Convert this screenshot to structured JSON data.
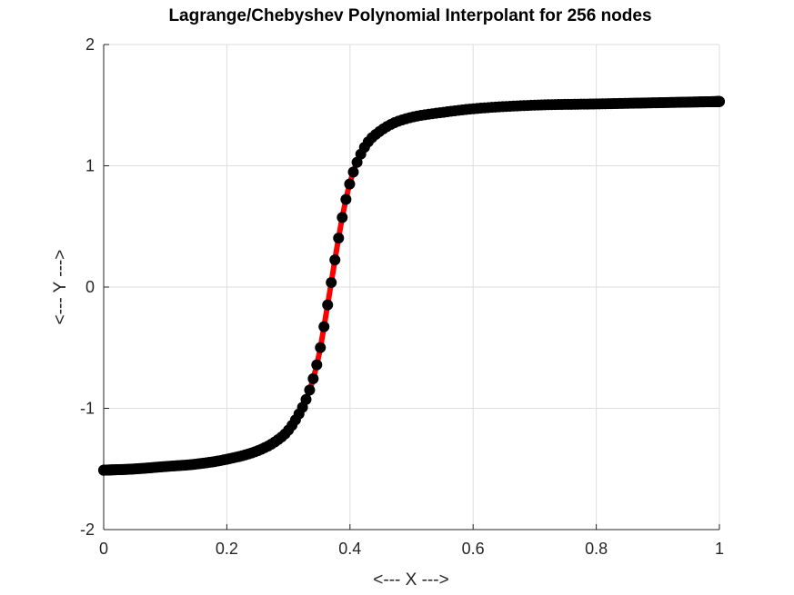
{
  "chart_data": {
    "type": "line",
    "title": "Lagrange/Chebyshev Polynomial Interpolant for 256 nodes",
    "xlabel": "<--- X --->",
    "ylabel": "<--- Y --->",
    "xlim": [
      0,
      1
    ],
    "ylim": [
      -2,
      2
    ],
    "xticks": [
      0,
      0.2,
      0.4,
      0.6,
      0.8,
      1
    ],
    "xtick_labels": [
      "0",
      "0.2",
      "0.4",
      "0.6",
      "0.8",
      "1"
    ],
    "yticks": [
      -2,
      -1,
      0,
      1,
      2
    ],
    "ytick_labels": [
      "-2",
      "-1",
      "0",
      "1",
      "2"
    ],
    "grid": true,
    "series": [
      {
        "role": "interpolant",
        "style": "line",
        "color": "#ff0000",
        "x": [
          0,
          0.05,
          0.1,
          0.15,
          0.2,
          0.25,
          0.28,
          0.3,
          0.32,
          0.33,
          0.34,
          0.35,
          0.36,
          0.37,
          0.38,
          0.39,
          0.4,
          0.41,
          0.42,
          0.43,
          0.45,
          0.47,
          0.5,
          0.55,
          0.6,
          0.7,
          0.8,
          0.9,
          1
        ],
        "y": [
          -1.51,
          -1.5,
          -1.48,
          -1.46,
          -1.42,
          -1.35,
          -1.27,
          -1.18,
          -1.02,
          -0.91,
          -0.76,
          -0.55,
          -0.26,
          0.05,
          0.36,
          0.64,
          0.86,
          1.01,
          1.12,
          1.2,
          1.29,
          1.35,
          1.4,
          1.44,
          1.47,
          1.5,
          1.51,
          1.52,
          1.53
        ]
      },
      {
        "role": "nodes",
        "style": "markers",
        "color": "#000000",
        "count": 256,
        "x_center": 0.5,
        "x_half_width": 0.5,
        "node_type": "Chebyshev"
      }
    ]
  }
}
